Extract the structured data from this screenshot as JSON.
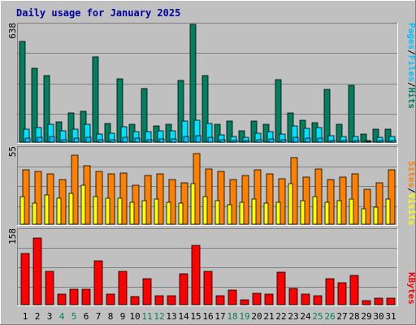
{
  "title": "Daily usage for January 2025",
  "colors": {
    "outer_bg": "#C0C0C0",
    "panel_bg": "#C0C0C0",
    "title_text": "#0000A0",
    "hits": "#008060",
    "files": "#00E0FF",
    "pages": "#00C0FF",
    "sites": "#FF8000",
    "visits": "#FFFF00",
    "kbytes": "#FF0000",
    "weekday_label": "#000000",
    "weekend_label": "#00805C",
    "grid": "#808080"
  },
  "chart_data": {
    "type": "bar",
    "categories": [
      "1",
      "2",
      "3",
      "4",
      "5",
      "6",
      "7",
      "8",
      "9",
      "10",
      "11",
      "12",
      "13",
      "14",
      "15",
      "16",
      "17",
      "18",
      "19",
      "20",
      "21",
      "22",
      "23",
      "24",
      "25",
      "26",
      "27",
      "28",
      "29",
      "30",
      "31"
    ],
    "weekend_days": [
      "4",
      "5",
      "11",
      "12",
      "18",
      "19",
      "25",
      "26"
    ],
    "panels": [
      {
        "scale_label": "638",
        "ymax": 638,
        "right_labels": [
          {
            "text": "Hits",
            "color": "#008060"
          },
          {
            "text": "/",
            "color": "#000000"
          },
          {
            "text": "Files",
            "color": "#00C0FF"
          },
          {
            "text": "/",
            "color": "#000000"
          },
          {
            "text": "Pages",
            "color": "#00C0FF"
          }
        ],
        "series": [
          {
            "name": "Hits",
            "color": "#008060",
            "values": [
              545,
              400,
              360,
              110,
              160,
              165,
              460,
              100,
              345,
              95,
              290,
              90,
              95,
              335,
              638,
              360,
              95,
              115,
              60,
              115,
              95,
              340,
              160,
              120,
              105,
              285,
              95,
              310,
              45,
              70,
              70
            ]
          },
          {
            "name": "Files",
            "color": "#00E0FF",
            "values": [
              70,
              80,
              95,
              60,
              70,
              95,
              45,
              50,
              85,
              55,
              55,
              60,
              60,
              115,
              120,
              100,
              40,
              30,
              25,
              50,
              55,
              45,
              90,
              75,
              80,
              35,
              30,
              30,
              10,
              25,
              30
            ]
          },
          {
            "name": "Pages",
            "color": "#00C0FF",
            "values": [
              20,
              25,
              30,
              15,
              20,
              25,
              15,
              15,
              25,
              20,
              15,
              18,
              18,
              30,
              35,
              25,
              12,
              10,
              8,
              15,
              18,
              12,
              25,
              20,
              22,
              10,
              10,
              10,
              5,
              8,
              10
            ]
          }
        ]
      },
      {
        "scale_label": "55",
        "ymax": 55,
        "right_labels": [
          {
            "text": "Visits",
            "color": "#FFFF00"
          },
          {
            "text": "/",
            "color": "#000000"
          },
          {
            "text": "Sites",
            "color": "#FF8000"
          }
        ],
        "series": [
          {
            "name": "Sites",
            "color": "#FF8000",
            "values": [
              39,
              38,
              36,
              32,
              50,
              42,
              38,
              36,
              37,
              28,
              35,
              36,
              32,
              30,
              51,
              40,
              38,
              32,
              35,
              39,
              36,
              33,
              48,
              34,
              40,
              32,
              34,
              36,
              25,
              30,
              39
            ]
          },
          {
            "name": "Visits",
            "color": "#FFFF00",
            "values": [
              20,
              15,
              21,
              19,
              22,
              28,
              20,
              19,
              19,
              16,
              17,
              18,
              16,
              15,
              29,
              20,
              17,
              14,
              16,
              18,
              15,
              16,
              29,
              17,
              20,
              16,
              17,
              18,
              11,
              12,
              18
            ]
          }
        ]
      },
      {
        "scale_label": "158",
        "ymax": 158,
        "right_labels": [
          {
            "text": "KBytes",
            "color": "#FF0000"
          }
        ],
        "series": [
          {
            "name": "KBytes",
            "color": "#FF0000",
            "values": [
              108,
              141,
              70,
              23,
              32,
              32,
              92,
              22,
              70,
              18,
              55,
              19,
              19,
              66,
              125,
              70,
              19,
              31,
              11,
              24,
              22,
              69,
              35,
              23,
              19,
              55,
              46,
              62,
              9,
              14,
              14
            ]
          }
        ]
      }
    ]
  }
}
